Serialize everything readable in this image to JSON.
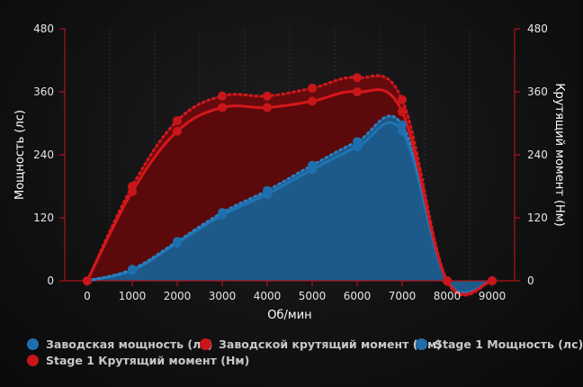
{
  "chart_data": {
    "type": "line",
    "xlabel": "Об/мин",
    "ylabel_left": "Мощность (лс)",
    "ylabel_right": "Крутящий момент (Нм)",
    "x": [
      0,
      1000,
      2000,
      3000,
      4000,
      5000,
      6000,
      7000,
      8000,
      9000
    ],
    "xlim": [
      -500,
      9500
    ],
    "ylim_left": [
      0,
      480
    ],
    "ylim_right": [
      0,
      480
    ],
    "yticks": [
      0,
      120,
      240,
      360,
      480
    ],
    "grid": "vertical dotted",
    "legend_position": "bottom",
    "series": [
      {
        "name": "Заводская мощность (лс)",
        "axis": "left",
        "color": "#1f6fae",
        "points": [
          [
            0,
            0
          ],
          [
            1000,
            20
          ],
          [
            2000,
            72
          ],
          [
            3000,
            125
          ],
          [
            4000,
            165
          ],
          [
            5000,
            212
          ],
          [
            6000,
            255
          ],
          [
            7000,
            285
          ],
          [
            8000,
            0
          ],
          [
            9000,
            0
          ]
        ]
      },
      {
        "name": "Заводской крутящий момент (Нм)",
        "axis": "right",
        "color": "#c8161a",
        "points": [
          [
            0,
            0
          ],
          [
            1000,
            170
          ],
          [
            2000,
            285
          ],
          [
            3000,
            330
          ],
          [
            4000,
            330
          ],
          [
            5000,
            342
          ],
          [
            6000,
            360
          ],
          [
            7000,
            322
          ],
          [
            8000,
            0
          ],
          [
            9000,
            0
          ]
        ]
      },
      {
        "name": "Stage 1 Мощность (лс)",
        "axis": "left",
        "color": "#1f6fae",
        "points": [
          [
            0,
            0
          ],
          [
            1000,
            22
          ],
          [
            2000,
            75
          ],
          [
            3000,
            130
          ],
          [
            4000,
            172
          ],
          [
            5000,
            220
          ],
          [
            6000,
            265
          ],
          [
            7000,
            297
          ],
          [
            8000,
            0
          ],
          [
            9000,
            0
          ]
        ]
      },
      {
        "name": "Stage 1 Крутящий момент (Нм)",
        "axis": "right",
        "color": "#c8161a",
        "points": [
          [
            0,
            0
          ],
          [
            1000,
            180
          ],
          [
            2000,
            305
          ],
          [
            3000,
            352
          ],
          [
            4000,
            352
          ],
          [
            5000,
            367
          ],
          [
            6000,
            387
          ],
          [
            7000,
            345
          ],
          [
            8000,
            0
          ],
          [
            9000,
            0
          ]
        ]
      }
    ]
  }
}
